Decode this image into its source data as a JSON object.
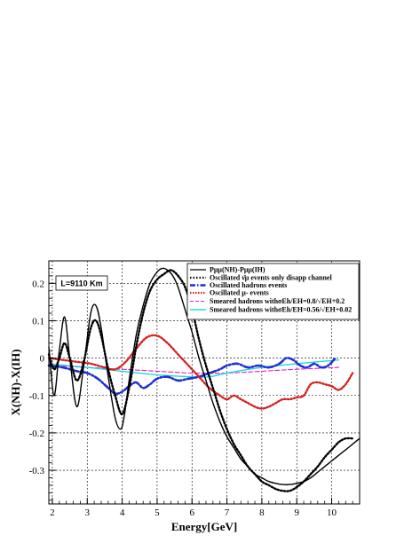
{
  "chart_data": {
    "type": "line",
    "title": "",
    "xlabel": "Energy[GeV]",
    "ylabel": "X(NH)-X(IH)",
    "xlim": [
      1.9,
      10.8
    ],
    "ylim": [
      -0.39,
      0.26
    ],
    "grid": true,
    "legend_position": "top-right",
    "x_ticks": [
      2,
      3,
      4,
      5,
      6,
      7,
      8,
      9,
      10
    ],
    "y_ticks": [
      0.2,
      0.1,
      0,
      -0.1,
      -0.2,
      -0.3
    ],
    "x_tick_labels": [
      "2",
      "3",
      "4",
      "5",
      "6",
      "7",
      "8",
      "9",
      "10"
    ],
    "y_tick_labels": [
      "0.2",
      "0.1",
      "0",
      "-0.1",
      "-0.2",
      "-0.3"
    ],
    "annotation": "L=9110 Km",
    "series": [
      {
        "name": "Pμμ(NH)-Pμμ(IH)",
        "style": "solid",
        "color": "#000000",
        "x": [
          1.9,
          2.05,
          2.2,
          2.35,
          2.5,
          2.7,
          2.9,
          3.1,
          3.25,
          3.4,
          3.6,
          3.8,
          3.95,
          4.05,
          4.2,
          4.4,
          4.6,
          4.8,
          5.0,
          5.15,
          5.3,
          5.45,
          5.6,
          5.8,
          6.0,
          6.2,
          6.4,
          6.6,
          6.8,
          7.0,
          7.2,
          7.4,
          7.6,
          7.8,
          8.0,
          8.2,
          8.4,
          8.6,
          8.8,
          9.0,
          9.2,
          9.4,
          9.6,
          9.8,
          10.0,
          10.2,
          10.4,
          10.6,
          10.8
        ],
        "y": [
          0.03,
          -0.1,
          0.02,
          0.11,
          0.0,
          -0.13,
          -0.02,
          0.12,
          0.14,
          0.08,
          -0.05,
          -0.16,
          -0.19,
          -0.16,
          -0.06,
          0.06,
          0.14,
          0.2,
          0.23,
          0.24,
          0.235,
          0.22,
          0.19,
          0.13,
          0.07,
          0.0,
          -0.06,
          -0.12,
          -0.17,
          -0.21,
          -0.24,
          -0.27,
          -0.29,
          -0.31,
          -0.32,
          -0.33,
          -0.335,
          -0.338,
          -0.338,
          -0.335,
          -0.33,
          -0.32,
          -0.305,
          -0.29,
          -0.275,
          -0.26,
          -0.245,
          -0.23,
          -0.215
        ]
      },
      {
        "name": "Oscillated ν̄μ events only disapp channel",
        "style": "dotted",
        "color": "#000000",
        "x": [
          1.9,
          2.05,
          2.2,
          2.35,
          2.5,
          2.7,
          2.9,
          3.1,
          3.25,
          3.4,
          3.6,
          3.8,
          4.0,
          4.2,
          4.4,
          4.6,
          4.8,
          5.0,
          5.2,
          5.4,
          5.6,
          5.8,
          6.0,
          6.2,
          6.4,
          6.6,
          6.8,
          7.0,
          7.2,
          7.4,
          7.6,
          7.8,
          8.0,
          8.2,
          8.4,
          8.6,
          8.8,
          9.0,
          9.2,
          9.4,
          9.6,
          9.8,
          10.0,
          10.2,
          10.4,
          10.6
        ],
        "y": [
          0.01,
          -0.03,
          0.0,
          0.04,
          0.0,
          -0.06,
          -0.01,
          0.08,
          0.1,
          0.06,
          -0.03,
          -0.1,
          -0.15,
          -0.08,
          0.03,
          0.12,
          0.18,
          0.21,
          0.225,
          0.235,
          0.22,
          0.19,
          0.13,
          0.05,
          -0.02,
          -0.08,
          -0.14,
          -0.19,
          -0.23,
          -0.26,
          -0.29,
          -0.31,
          -0.33,
          -0.34,
          -0.35,
          -0.355,
          -0.355,
          -0.345,
          -0.33,
          -0.31,
          -0.29,
          -0.265,
          -0.245,
          -0.225,
          -0.215,
          -0.215
        ]
      },
      {
        "name": "Oscillated hadrons events",
        "style": "dashdot",
        "color": "#1f2fd0",
        "x": [
          1.9,
          2.3,
          2.7,
          3.0,
          3.3,
          3.6,
          3.8,
          4.0,
          4.2,
          4.4,
          4.6,
          4.8,
          5.0,
          5.3,
          5.6,
          5.9,
          6.2,
          6.5,
          6.8,
          7.0,
          7.3,
          7.6,
          7.9,
          8.2,
          8.5,
          8.7,
          8.9,
          9.1,
          9.3,
          9.5,
          9.7,
          9.9,
          10.1
        ],
        "y": [
          -0.02,
          -0.025,
          -0.035,
          -0.04,
          -0.055,
          -0.08,
          -0.095,
          -0.09,
          -0.075,
          -0.065,
          -0.08,
          -0.07,
          -0.055,
          -0.05,
          -0.06,
          -0.055,
          -0.05,
          -0.04,
          -0.03,
          -0.02,
          -0.015,
          -0.025,
          -0.02,
          -0.025,
          -0.015,
          0.0,
          -0.005,
          -0.02,
          -0.025,
          -0.015,
          -0.025,
          -0.02,
          0.0
        ]
      },
      {
        "name": "Oscillated μ- events",
        "style": "dotted",
        "color": "#d42020",
        "x": [
          1.9,
          2.3,
          2.7,
          3.1,
          3.5,
          3.8,
          4.1,
          4.4,
          4.7,
          5.0,
          5.3,
          5.6,
          5.9,
          6.2,
          6.5,
          6.8,
          7.0,
          7.2,
          7.4,
          7.6,
          7.8,
          8.0,
          8.2,
          8.4,
          8.6,
          8.8,
          9.0,
          9.2,
          9.4,
          9.6,
          9.8,
          10.0,
          10.2,
          10.4,
          10.6
        ],
        "y": [
          0.0,
          -0.005,
          -0.01,
          -0.015,
          -0.025,
          -0.03,
          -0.01,
          0.025,
          0.055,
          0.06,
          0.04,
          0.01,
          -0.02,
          -0.05,
          -0.08,
          -0.1,
          -0.11,
          -0.1,
          -0.11,
          -0.12,
          -0.13,
          -0.135,
          -0.13,
          -0.12,
          -0.11,
          -0.11,
          -0.105,
          -0.1,
          -0.07,
          -0.065,
          -0.07,
          -0.075,
          -0.085,
          -0.07,
          -0.04
        ]
      },
      {
        "name": "Smeared hadrons withσEh/EH=0.8/√EH+0.2",
        "style": "dashed",
        "color": "#e020c0",
        "x": [
          1.9,
          3.0,
          4.0,
          5.0,
          6.0,
          7.0,
          8.0,
          9.0,
          10.2
        ],
        "y": [
          -0.02,
          -0.025,
          -0.03,
          -0.035,
          -0.04,
          -0.04,
          -0.035,
          -0.03,
          -0.025
        ]
      },
      {
        "name": "Smeared hadrons withσEh/EH=0.56/√EH+0.02",
        "style": "solid",
        "color": "#20d8e0",
        "x": [
          1.9,
          3.0,
          4.0,
          5.0,
          6.0,
          6.5,
          7.0,
          8.0,
          9.0,
          10.2
        ],
        "y": [
          -0.015,
          -0.025,
          -0.035,
          -0.045,
          -0.05,
          -0.05,
          -0.04,
          -0.025,
          -0.015,
          -0.005
        ]
      }
    ]
  }
}
